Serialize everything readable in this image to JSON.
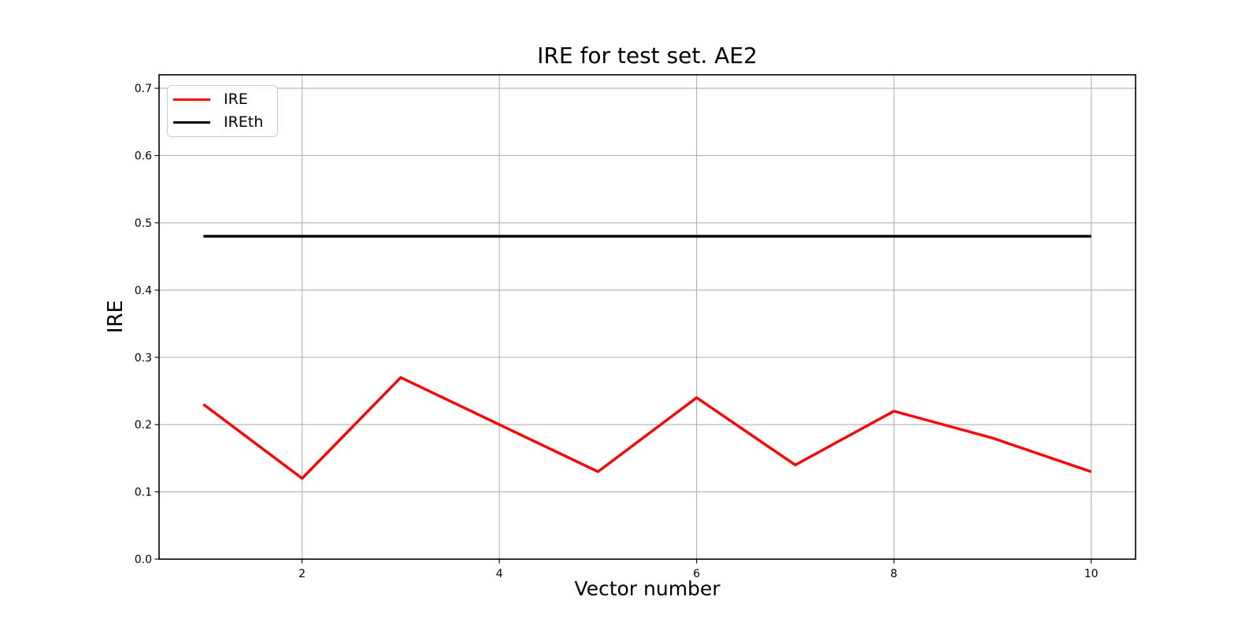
{
  "chart_data": {
    "type": "line",
    "title": "IRE for test set. AE2",
    "xlabel": "Vector number",
    "ylabel": "IRE",
    "x": [
      1,
      2,
      3,
      4,
      5,
      6,
      7,
      8,
      9,
      10
    ],
    "series": [
      {
        "name": "IRE",
        "color": "#ff0000",
        "values": [
          0.23,
          0.12,
          0.27,
          0.2,
          0.13,
          0.24,
          0.14,
          0.22,
          0.18,
          0.13
        ]
      },
      {
        "name": "IREth",
        "color": "#000000",
        "values": [
          0.48,
          0.48,
          0.48,
          0.48,
          0.48,
          0.48,
          0.48,
          0.48,
          0.48,
          0.48
        ]
      }
    ],
    "xlim": [
      0.55,
      10.45
    ],
    "ylim": [
      0,
      0.72
    ],
    "xticks": {
      "values": [
        2,
        4,
        6,
        8,
        10
      ],
      "labels": [
        "2",
        "4",
        "6",
        "8",
        "10"
      ]
    },
    "yticks": {
      "values": [
        0.0,
        0.1,
        0.2,
        0.3,
        0.4,
        0.5,
        0.6,
        0.7
      ],
      "labels": [
        "0.0",
        "0.1",
        "0.2",
        "0.3",
        "0.4",
        "0.5",
        "0.6",
        "0.7"
      ]
    },
    "grid": true,
    "grid_color": "#b0b0b0",
    "legend_position": "upper left",
    "line_width": 3.4
  }
}
